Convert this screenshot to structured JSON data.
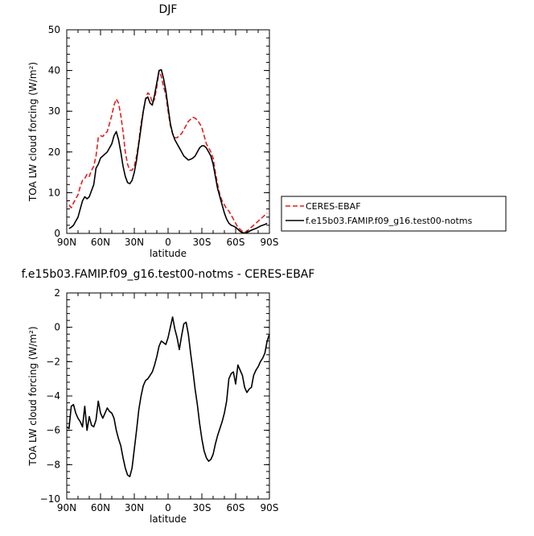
{
  "chart_data": [
    {
      "type": "line",
      "title": "DJF",
      "xlabel": "latitude",
      "ylabel": "TOA LW cloud forcing (W/m²)",
      "xlim": [
        90,
        -90
      ],
      "ylim": [
        0,
        50
      ],
      "xticks": [
        {
          "value": 90,
          "label": "90N"
        },
        {
          "value": 60,
          "label": "60N"
        },
        {
          "value": 30,
          "label": "30N"
        },
        {
          "value": 0,
          "label": "0"
        },
        {
          "value": -30,
          "label": "30S"
        },
        {
          "value": -60,
          "label": "60S"
        },
        {
          "value": -90,
          "label": "90S"
        }
      ],
      "yticks": [
        0,
        10,
        20,
        30,
        40,
        50
      ],
      "legend": "right",
      "series": [
        {
          "name": "CERES-EBAF",
          "color": "#e02020",
          "dash": "dashed",
          "x": [
            88,
            86,
            84,
            82,
            80,
            78,
            76,
            74,
            72,
            70,
            68,
            66,
            64,
            62,
            60,
            58,
            56,
            54,
            52,
            50,
            48,
            46,
            44,
            42,
            40,
            38,
            36,
            34,
            32,
            30,
            28,
            26,
            24,
            22,
            20,
            18,
            16,
            14,
            12,
            10,
            8,
            6,
            4,
            2,
            0,
            -2,
            -4,
            -6,
            -8,
            -10,
            -12,
            -14,
            -16,
            -18,
            -20,
            -22,
            -24,
            -26,
            -28,
            -30,
            -32,
            -34,
            -36,
            -38,
            -40,
            -42,
            -44,
            -46,
            -48,
            -50,
            -52,
            -54,
            -56,
            -58,
            -60,
            -62,
            -64,
            -66,
            -68,
            -70,
            -72,
            -74,
            -76,
            -78,
            -80,
            -82,
            -84,
            -86,
            -88
          ],
          "y": [
            7.0,
            6.3,
            7.5,
            8.5,
            9.5,
            11.5,
            13,
            13.5,
            14.5,
            14,
            15.5,
            16.5,
            19,
            23.5,
            24,
            23.8,
            24.5,
            25,
            27,
            29,
            31.5,
            33,
            32,
            29,
            25,
            20,
            17,
            15.5,
            15.5,
            16.5,
            19,
            22.5,
            27,
            30,
            33,
            34.5,
            34,
            32,
            33,
            36,
            40,
            38.5,
            36,
            34,
            30,
            26.5,
            24.5,
            23.5,
            23.5,
            24,
            24.5,
            25.5,
            26.5,
            27.5,
            28,
            28.5,
            28.3,
            27.8,
            27,
            26,
            24,
            22,
            21,
            20,
            18.5,
            15,
            12,
            9.5,
            8,
            7,
            6,
            5.5,
            4.5,
            3.5,
            2.5,
            1.5,
            1.0,
            0.5,
            0.3,
            0.5,
            1.0,
            1.5,
            2.0,
            2.5,
            3.0,
            3.5,
            4.0,
            4.5,
            5.0
          ]
        },
        {
          "name": "f.e15b03.FAMIP.f09_g16.test00-notms",
          "color": "#000000",
          "dash": "solid",
          "x": [
            88,
            86,
            84,
            82,
            80,
            78,
            76,
            74,
            72,
            70,
            68,
            66,
            64,
            62,
            60,
            58,
            56,
            54,
            52,
            50,
            48,
            46,
            44,
            42,
            40,
            38,
            36,
            34,
            32,
            30,
            28,
            26,
            24,
            22,
            20,
            18,
            16,
            14,
            12,
            10,
            8,
            6,
            4,
            2,
            0,
            -2,
            -4,
            -6,
            -8,
            -10,
            -12,
            -14,
            -16,
            -18,
            -20,
            -22,
            -24,
            -26,
            -28,
            -30,
            -32,
            -34,
            -36,
            -38,
            -40,
            -42,
            -44,
            -46,
            -48,
            -50,
            -52,
            -54,
            -56,
            -58,
            -60,
            -62,
            -64,
            -66,
            -68,
            -70,
            -72,
            -74,
            -76,
            -78,
            -80,
            -82,
            -84,
            -86,
            -88
          ],
          "y": [
            1.2,
            1.5,
            2,
            3,
            4,
            6,
            8,
            9,
            8.5,
            9,
            10.5,
            12,
            16,
            17,
            18.5,
            19,
            19.5,
            20,
            21,
            22,
            24,
            25,
            23,
            20,
            16.5,
            14,
            12.5,
            12.2,
            13,
            15,
            18,
            22,
            26,
            30,
            33,
            33.5,
            32,
            31.5,
            34,
            37,
            40,
            40.2,
            38,
            35,
            31,
            27,
            24.5,
            23,
            22,
            21,
            20,
            19,
            18.5,
            18,
            18.2,
            18.5,
            19,
            20,
            21,
            21.5,
            21.5,
            21,
            20,
            19,
            17,
            14,
            11,
            9,
            7,
            5,
            3.5,
            2.5,
            2,
            1.8,
            1.5,
            1,
            0.5,
            0.2,
            0.1,
            0.2,
            0.5,
            0.8,
            1.0,
            1.2,
            1.5,
            1.8,
            2.0,
            2.2,
            2.5
          ]
        }
      ]
    },
    {
      "type": "line",
      "title": "f.e15b03.FAMIP.f09_g16.test00-notms  -  CERES-EBAF",
      "xlabel": "latitude",
      "ylabel": "TOA LW cloud forcing (W/m²)",
      "xlim": [
        90,
        -90
      ],
      "ylim": [
        -10,
        2
      ],
      "xticks": [
        {
          "value": 90,
          "label": "90N"
        },
        {
          "value": 60,
          "label": "60N"
        },
        {
          "value": 30,
          "label": "30N"
        },
        {
          "value": 0,
          "label": "0"
        },
        {
          "value": -30,
          "label": "30S"
        },
        {
          "value": -60,
          "label": "60S"
        },
        {
          "value": -90,
          "label": "90S"
        }
      ],
      "yticks": [
        -10,
        -8,
        -6,
        -4,
        -2,
        0,
        2
      ],
      "series": [
        {
          "color": "#000000",
          "dash": "solid",
          "x": [
            90,
            88,
            86,
            84,
            82,
            80,
            78,
            76,
            74,
            72,
            70,
            68,
            66,
            64,
            62,
            60,
            58,
            56,
            54,
            52,
            50,
            48,
            46,
            44,
            42,
            40,
            38,
            36,
            34,
            32,
            30,
            28,
            26,
            24,
            22,
            20,
            18,
            16,
            14,
            12,
            10,
            8,
            6,
            4,
            2,
            0,
            -2,
            -4,
            -6,
            -8,
            -10,
            -12,
            -14,
            -16,
            -18,
            -20,
            -22,
            -24,
            -26,
            -28,
            -30,
            -32,
            -34,
            -36,
            -38,
            -40,
            -42,
            -44,
            -46,
            -48,
            -50,
            -52,
            -54,
            -56,
            -58,
            -60,
            -62,
            -64,
            -66,
            -68,
            -70,
            -72,
            -74,
            -76,
            -78,
            -80,
            -82,
            -84,
            -86,
            -88,
            -90
          ],
          "y": [
            -5.8,
            -5.9,
            -4.6,
            -4.5,
            -5.0,
            -5.3,
            -5.5,
            -5.8,
            -4.6,
            -6.0,
            -5.2,
            -5.7,
            -5.8,
            -5.4,
            -4.3,
            -5.0,
            -5.3,
            -5.0,
            -4.7,
            -4.9,
            -5.0,
            -5.3,
            -6.0,
            -6.5,
            -6.9,
            -7.6,
            -8.2,
            -8.6,
            -8.7,
            -8.2,
            -7.1,
            -6.0,
            -4.8,
            -4.0,
            -3.4,
            -3.1,
            -3.0,
            -2.8,
            -2.6,
            -2.2,
            -1.7,
            -1.1,
            -0.8,
            -0.9,
            -1.0,
            -0.6,
            0.0,
            0.6,
            -0.1,
            -0.6,
            -1.3,
            -0.5,
            0.2,
            0.3,
            -0.4,
            -1.5,
            -2.5,
            -3.6,
            -4.5,
            -5.6,
            -6.5,
            -7.2,
            -7.6,
            -7.8,
            -7.7,
            -7.4,
            -6.8,
            -6.3,
            -5.9,
            -5.5,
            -5.0,
            -4.3,
            -3.0,
            -2.7,
            -2.6,
            -3.3,
            -2.2,
            -2.5,
            -2.8,
            -3.5,
            -3.8,
            -3.6,
            -3.5,
            -2.8,
            -2.5,
            -2.3,
            -2.0,
            -1.8,
            -1.5,
            -0.8,
            -0.4
          ]
        }
      ]
    }
  ]
}
